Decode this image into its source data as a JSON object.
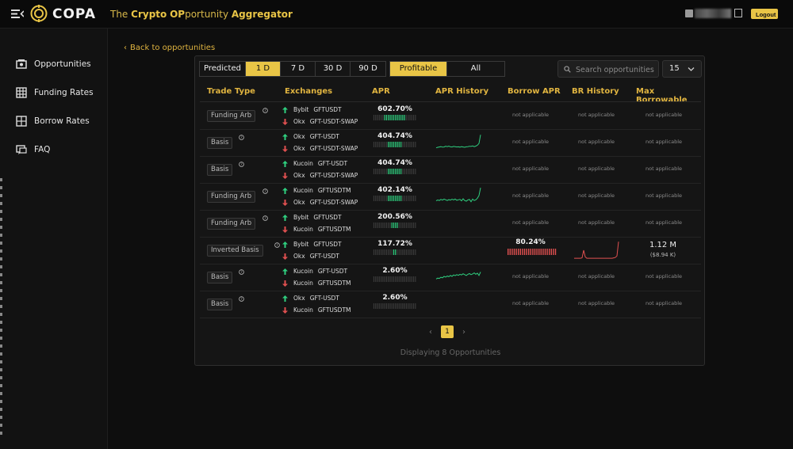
{
  "header": {
    "brand": "COPA",
    "tagline_parts": [
      {
        "text": "The ",
        "hl": false
      },
      {
        "text": "Crypto",
        "hl": true
      },
      {
        "text": " ",
        "hl": false
      },
      {
        "text": "OP",
        "hl": true
      },
      {
        "text": "portunity ",
        "hl": false
      },
      {
        "text": "Aggregator",
        "hl": true
      }
    ],
    "logout_label": "Logout",
    "accent_color": "#e9c546"
  },
  "sidebar": {
    "items": [
      {
        "label": "Opportunities",
        "icon": "opportunities-icon"
      },
      {
        "label": "Funding Rates",
        "icon": "table-icon"
      },
      {
        "label": "Borrow Rates",
        "icon": "grid-icon"
      },
      {
        "label": "FAQ",
        "icon": "faq-icon"
      }
    ]
  },
  "back_link": "Back to opportunities",
  "filters": {
    "range_tabs": [
      {
        "label": "Predicted",
        "active": false
      },
      {
        "label": "1 D",
        "active": true
      },
      {
        "label": "7 D",
        "active": false
      },
      {
        "label": "30 D",
        "active": false
      },
      {
        "label": "90 D",
        "active": false
      }
    ],
    "profit_tabs": [
      {
        "label": "Profitable",
        "active": true
      },
      {
        "label": "All",
        "active": false
      }
    ],
    "search_placeholder": "Search opportunities",
    "page_size": "15"
  },
  "table": {
    "headers": [
      "Trade Type",
      "Exchanges",
      "APR",
      "APR History",
      "Borrow APR",
      "BR History",
      "Max Borrowable"
    ],
    "rows": [
      {
        "trade_type": "Funding Arb",
        "long": {
          "exchange": "Bybit",
          "symbol": "GFTUSDT"
        },
        "short": {
          "exchange": "Okx",
          "symbol": "GFT-USDT-SWAP"
        },
        "apr": "602.70%",
        "apr_level": 0.5,
        "apr_history": null,
        "borrow_apr": "not applicable",
        "br_history": "not applicable",
        "max_borrowable": "not applicable"
      },
      {
        "trade_type": "Basis",
        "long": {
          "exchange": "Okx",
          "symbol": "GFT-USDT"
        },
        "short": {
          "exchange": "Okx",
          "symbol": "GFT-USDT-SWAP"
        },
        "apr": "404.74%",
        "apr_level": 0.34,
        "apr_history": [
          0.15,
          0.18,
          0.2,
          0.22,
          0.19,
          0.2,
          0.24,
          0.22,
          0.25,
          0.21,
          0.2,
          0.23,
          0.22,
          0.2,
          0.21,
          0.19,
          0.22,
          0.2,
          0.18,
          0.21,
          0.22,
          0.24,
          0.23,
          0.26,
          0.22,
          0.25,
          0.3,
          0.4,
          0.9
        ],
        "borrow_apr": "not applicable",
        "br_history": "not applicable",
        "max_borrowable": "not applicable"
      },
      {
        "trade_type": "Basis",
        "long": {
          "exchange": "Kucoin",
          "symbol": "GFT-USDT"
        },
        "short": {
          "exchange": "Okx",
          "symbol": "GFT-USDT-SWAP"
        },
        "apr": "404.74%",
        "apr_level": 0.34,
        "apr_history": null,
        "borrow_apr": "not applicable",
        "br_history": "not applicable",
        "max_borrowable": "not applicable"
      },
      {
        "trade_type": "Funding Arb",
        "long": {
          "exchange": "Kucoin",
          "symbol": "GFTUSDTM"
        },
        "short": {
          "exchange": "Okx",
          "symbol": "GFT-USDT-SWAP"
        },
        "apr": "402.14%",
        "apr_level": 0.34,
        "apr_history": [
          0.2,
          0.25,
          0.22,
          0.28,
          0.24,
          0.3,
          0.26,
          0.22,
          0.27,
          0.24,
          0.29,
          0.25,
          0.3,
          0.23,
          0.26,
          0.28,
          0.2,
          0.32,
          0.22,
          0.18,
          0.25,
          0.28,
          0.15,
          0.3,
          0.22,
          0.26,
          0.35,
          0.5,
          0.95
        ],
        "borrow_apr": "not applicable",
        "br_history": "not applicable",
        "max_borrowable": "not applicable"
      },
      {
        "trade_type": "Funding Arb",
        "long": {
          "exchange": "Bybit",
          "symbol": "GFTUSDT"
        },
        "short": {
          "exchange": "Kucoin",
          "symbol": "GFTUSDTM"
        },
        "apr": "200.56%",
        "apr_level": 0.17,
        "apr_history": null,
        "borrow_apr": "not applicable",
        "br_history": "not applicable",
        "max_borrowable": "not applicable"
      },
      {
        "trade_type": "Inverted Basis",
        "long": {
          "exchange": "Bybit",
          "symbol": "GFTUSDT"
        },
        "short": {
          "exchange": "Okx",
          "symbol": "GFT-USDT"
        },
        "apr": "117.72%",
        "apr_level": 0.1,
        "apr_history": null,
        "borrow_apr": "80.24%",
        "borrow_level": 1.0,
        "br_history": [
          0.08,
          0.08,
          0.08,
          0.08,
          0.08,
          0.1,
          0.5,
          0.15,
          0.08,
          0.08,
          0.08,
          0.08,
          0.08,
          0.08,
          0.08,
          0.08,
          0.08,
          0.08,
          0.08,
          0.08,
          0.08,
          0.08,
          0.08,
          0.08,
          0.08,
          0.1,
          0.12,
          0.2,
          0.95
        ],
        "max_borrowable": "1.12 M",
        "max_borrowable_usd": "($8.94 K)"
      },
      {
        "trade_type": "Basis",
        "long": {
          "exchange": "Kucoin",
          "symbol": "GFT-USDT"
        },
        "short": {
          "exchange": "Kucoin",
          "symbol": "GFTUSDTM"
        },
        "apr": "2.60%",
        "apr_level": 0.0,
        "apr_history": [
          0.35,
          0.4,
          0.38,
          0.45,
          0.42,
          0.5,
          0.46,
          0.52,
          0.48,
          0.55,
          0.5,
          0.58,
          0.54,
          0.6,
          0.56,
          0.62,
          0.58,
          0.65,
          0.6,
          0.55,
          0.62,
          0.66,
          0.6,
          0.64,
          0.7,
          0.62,
          0.68,
          0.55,
          0.75
        ],
        "borrow_apr": "not applicable",
        "br_history": "not applicable",
        "max_borrowable": "not applicable"
      },
      {
        "trade_type": "Basis",
        "long": {
          "exchange": "Okx",
          "symbol": "GFT-USDT"
        },
        "short": {
          "exchange": "Kucoin",
          "symbol": "GFTUSDTM"
        },
        "apr": "2.60%",
        "apr_level": 0.0,
        "apr_history": null,
        "borrow_apr": "not applicable",
        "br_history": "not applicable",
        "max_borrowable": "not applicable"
      }
    ]
  },
  "pagination": {
    "current_page": "1",
    "prev": "‹",
    "next": "›"
  },
  "footer_text": "Displaying 8 Opportunities",
  "colors": {
    "up": "#2fcf7f",
    "down": "#e05050",
    "accent": "#e9c546",
    "bar_empty": "#3a3a3a"
  }
}
